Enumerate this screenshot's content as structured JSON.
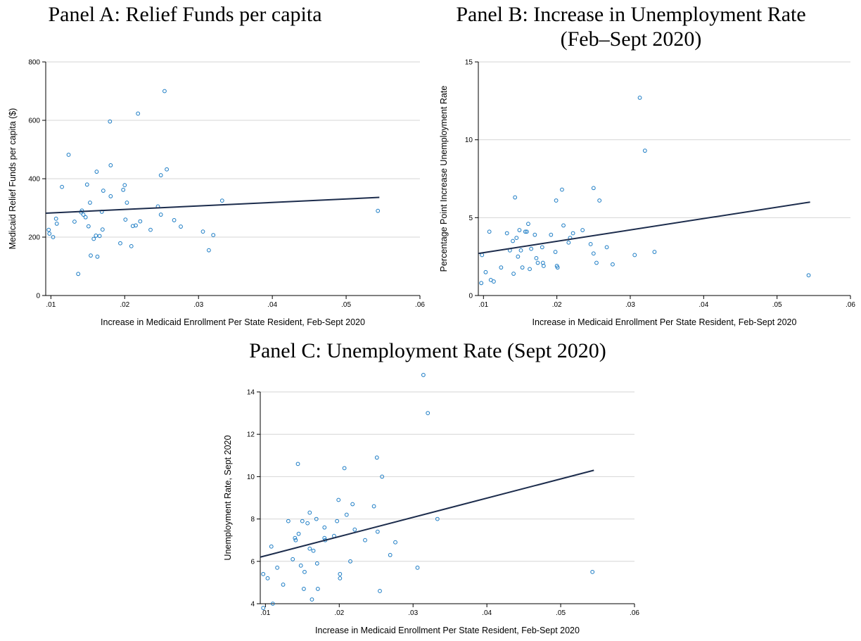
{
  "colors": {
    "point": "#1a7bc4",
    "fit_line": "#1c2c4c",
    "grid": "#d6d6d6"
  },
  "chart_data": [
    {
      "id": "a",
      "type": "scatter",
      "title_lines": [
        "Panel A: Relief Funds per capita"
      ],
      "xlabel": "Increase in Medicaid Enrollment Per State Resident, Feb-Sept 2020",
      "ylabel": "Medicaid Relief Funds per capita ($)",
      "xlim": [
        0.0093,
        0.06
      ],
      "ylim": [
        0,
        800
      ],
      "xticks": [
        0.01,
        0.02,
        0.03,
        0.04,
        0.05,
        0.06
      ],
      "xtick_labels": [
        ".01",
        ".02",
        ".03",
        ".04",
        ".05",
        ".06"
      ],
      "yticks": [
        0,
        200,
        400,
        600,
        800
      ],
      "ytick_labels": [
        "0",
        "200",
        "400",
        "600",
        "800"
      ],
      "grid": true,
      "fit_line": {
        "x": [
          0.0093,
          0.0545
        ],
        "y": [
          282,
          336
        ]
      },
      "points": [
        [
          0.0097,
          225
        ],
        [
          0.0098,
          212
        ],
        [
          0.0103,
          200
        ],
        [
          0.0107,
          263
        ],
        [
          0.0108,
          246
        ],
        [
          0.0115,
          372
        ],
        [
          0.0124,
          482
        ],
        [
          0.0132,
          253
        ],
        [
          0.0137,
          74
        ],
        [
          0.0141,
          285
        ],
        [
          0.0142,
          291
        ],
        [
          0.0144,
          277
        ],
        [
          0.0147,
          268
        ],
        [
          0.0149,
          380
        ],
        [
          0.0151,
          237
        ],
        [
          0.0153,
          318
        ],
        [
          0.0154,
          137
        ],
        [
          0.0158,
          194
        ],
        [
          0.0161,
          205
        ],
        [
          0.0162,
          424
        ],
        [
          0.0163,
          133
        ],
        [
          0.0166,
          204
        ],
        [
          0.0169,
          287
        ],
        [
          0.017,
          226
        ],
        [
          0.0171,
          359
        ],
        [
          0.018,
          596
        ],
        [
          0.0181,
          446
        ],
        [
          0.0181,
          340
        ],
        [
          0.0194,
          179
        ],
        [
          0.0198,
          362
        ],
        [
          0.02,
          378
        ],
        [
          0.0201,
          260
        ],
        [
          0.0203,
          318
        ],
        [
          0.0209,
          169
        ],
        [
          0.0211,
          238
        ],
        [
          0.0215,
          240
        ],
        [
          0.0218,
          623
        ],
        [
          0.0221,
          254
        ],
        [
          0.0235,
          225
        ],
        [
          0.0245,
          305
        ],
        [
          0.0249,
          412
        ],
        [
          0.0249,
          277
        ],
        [
          0.0254,
          700
        ],
        [
          0.0257,
          432
        ],
        [
          0.0267,
          258
        ],
        [
          0.0276,
          236
        ],
        [
          0.0306,
          219
        ],
        [
          0.0314,
          155
        ],
        [
          0.032,
          207
        ],
        [
          0.0332,
          325
        ],
        [
          0.0543,
          290
        ]
      ]
    },
    {
      "id": "b",
      "type": "scatter",
      "title_lines": [
        "Panel B: Increase in Unemployment Rate",
        "(Feb–Sept 2020)"
      ],
      "xlabel": "Increase in Medicaid Enrollment Per State Resident, Feb-Sept 2020",
      "ylabel": "Percentage Point Increase Unemployment Rate",
      "xlim": [
        0.0093,
        0.06
      ],
      "ylim": [
        0,
        15
      ],
      "xticks": [
        0.01,
        0.02,
        0.03,
        0.04,
        0.05,
        0.06
      ],
      "xtick_labels": [
        ".01",
        ".02",
        ".03",
        ".04",
        ".05",
        ".06"
      ],
      "yticks": [
        0,
        5,
        10,
        15
      ],
      "ytick_labels": [
        "0",
        "5",
        "10",
        "15"
      ],
      "grid": true,
      "fit_line": {
        "x": [
          0.0093,
          0.0545
        ],
        "y": [
          2.7,
          6.0
        ]
      },
      "points": [
        [
          0.0097,
          0.8
        ],
        [
          0.0098,
          2.6
        ],
        [
          0.0103,
          1.5
        ],
        [
          0.0108,
          4.1
        ],
        [
          0.011,
          1.0
        ],
        [
          0.0114,
          0.9
        ],
        [
          0.0124,
          1.8
        ],
        [
          0.0132,
          4.0
        ],
        [
          0.0136,
          2.9
        ],
        [
          0.014,
          3.5
        ],
        [
          0.0141,
          1.4
        ],
        [
          0.0143,
          6.3
        ],
        [
          0.0145,
          3.7
        ],
        [
          0.0147,
          2.5
        ],
        [
          0.0149,
          4.2
        ],
        [
          0.0151,
          2.9
        ],
        [
          0.0153,
          1.8
        ],
        [
          0.0157,
          4.1
        ],
        [
          0.0159,
          4.1
        ],
        [
          0.0161,
          4.6
        ],
        [
          0.0163,
          1.7
        ],
        [
          0.0165,
          3.0
        ],
        [
          0.017,
          3.9
        ],
        [
          0.0172,
          2.4
        ],
        [
          0.0174,
          2.1
        ],
        [
          0.018,
          3.1
        ],
        [
          0.0181,
          2.1
        ],
        [
          0.0182,
          1.9
        ],
        [
          0.0192,
          3.9
        ],
        [
          0.0198,
          2.8
        ],
        [
          0.0199,
          6.1
        ],
        [
          0.02,
          1.9
        ],
        [
          0.0201,
          1.8
        ],
        [
          0.0207,
          6.8
        ],
        [
          0.0209,
          4.5
        ],
        [
          0.0216,
          3.4
        ],
        [
          0.0218,
          3.7
        ],
        [
          0.0222,
          4.0
        ],
        [
          0.0235,
          4.2
        ],
        [
          0.0246,
          3.3
        ],
        [
          0.025,
          6.9
        ],
        [
          0.025,
          2.7
        ],
        [
          0.0254,
          2.1
        ],
        [
          0.0258,
          6.1
        ],
        [
          0.0268,
          3.1
        ],
        [
          0.0276,
          2.0
        ],
        [
          0.0306,
          2.6
        ],
        [
          0.0313,
          12.7
        ],
        [
          0.032,
          9.3
        ],
        [
          0.0333,
          2.8
        ],
        [
          0.0543,
          1.3
        ]
      ]
    },
    {
      "id": "c",
      "type": "scatter",
      "title_lines": [
        "Panel C: Unemployment Rate (Sept 2020)"
      ],
      "xlabel": "Increase in Medicaid Enrollment Per State Resident, Feb-Sept 2020",
      "ylabel": "Unemployment Rate, Sept 2020",
      "xlim": [
        0.0093,
        0.06
      ],
      "ylim": [
        4,
        14
      ],
      "xticks": [
        0.01,
        0.02,
        0.03,
        0.04,
        0.05,
        0.06
      ],
      "xtick_labels": [
        ".01",
        ".02",
        ".03",
        ".04",
        ".05",
        ".06"
      ],
      "yticks": [
        4,
        6,
        8,
        10,
        12,
        14
      ],
      "ytick_labels": [
        "4",
        "6",
        "8",
        "10",
        "12",
        "14"
      ],
      "grid": true,
      "fit_line": {
        "x": [
          0.0093,
          0.0545
        ],
        "y": [
          6.2,
          10.3
        ]
      },
      "points": [
        [
          0.0097,
          3.8
        ],
        [
          0.0097,
          5.4
        ],
        [
          0.0103,
          5.2
        ],
        [
          0.0108,
          6.7
        ],
        [
          0.011,
          4.0
        ],
        [
          0.0116,
          5.7
        ],
        [
          0.0124,
          4.9
        ],
        [
          0.0131,
          7.9
        ],
        [
          0.0137,
          6.1
        ],
        [
          0.014,
          7.1
        ],
        [
          0.0141,
          7.0
        ],
        [
          0.0144,
          10.6
        ],
        [
          0.0145,
          7.3
        ],
        [
          0.0148,
          5.8
        ],
        [
          0.015,
          7.9
        ],
        [
          0.0152,
          4.7
        ],
        [
          0.0153,
          5.5
        ],
        [
          0.0157,
          7.8
        ],
        [
          0.016,
          8.3
        ],
        [
          0.016,
          6.6
        ],
        [
          0.0163,
          4.2
        ],
        [
          0.0165,
          6.5
        ],
        [
          0.0169,
          8.0
        ],
        [
          0.017,
          5.9
        ],
        [
          0.0171,
          4.7
        ],
        [
          0.018,
          7.6
        ],
        [
          0.018,
          7.1
        ],
        [
          0.0181,
          7.0
        ],
        [
          0.0193,
          7.2
        ],
        [
          0.0197,
          7.9
        ],
        [
          0.0199,
          8.9
        ],
        [
          0.0201,
          5.4
        ],
        [
          0.0201,
          5.2
        ],
        [
          0.0207,
          10.4
        ],
        [
          0.021,
          8.2
        ],
        [
          0.0215,
          6.0
        ],
        [
          0.0218,
          8.7
        ],
        [
          0.0221,
          7.5
        ],
        [
          0.0235,
          7.0
        ],
        [
          0.0247,
          8.6
        ],
        [
          0.0251,
          10.9
        ],
        [
          0.0252,
          7.4
        ],
        [
          0.0255,
          4.6
        ],
        [
          0.0258,
          10.0
        ],
        [
          0.0269,
          6.3
        ],
        [
          0.0276,
          6.9
        ],
        [
          0.0306,
          5.7
        ],
        [
          0.0314,
          14.8
        ],
        [
          0.032,
          13.0
        ],
        [
          0.0333,
          8.0
        ],
        [
          0.0543,
          5.5
        ]
      ]
    }
  ]
}
